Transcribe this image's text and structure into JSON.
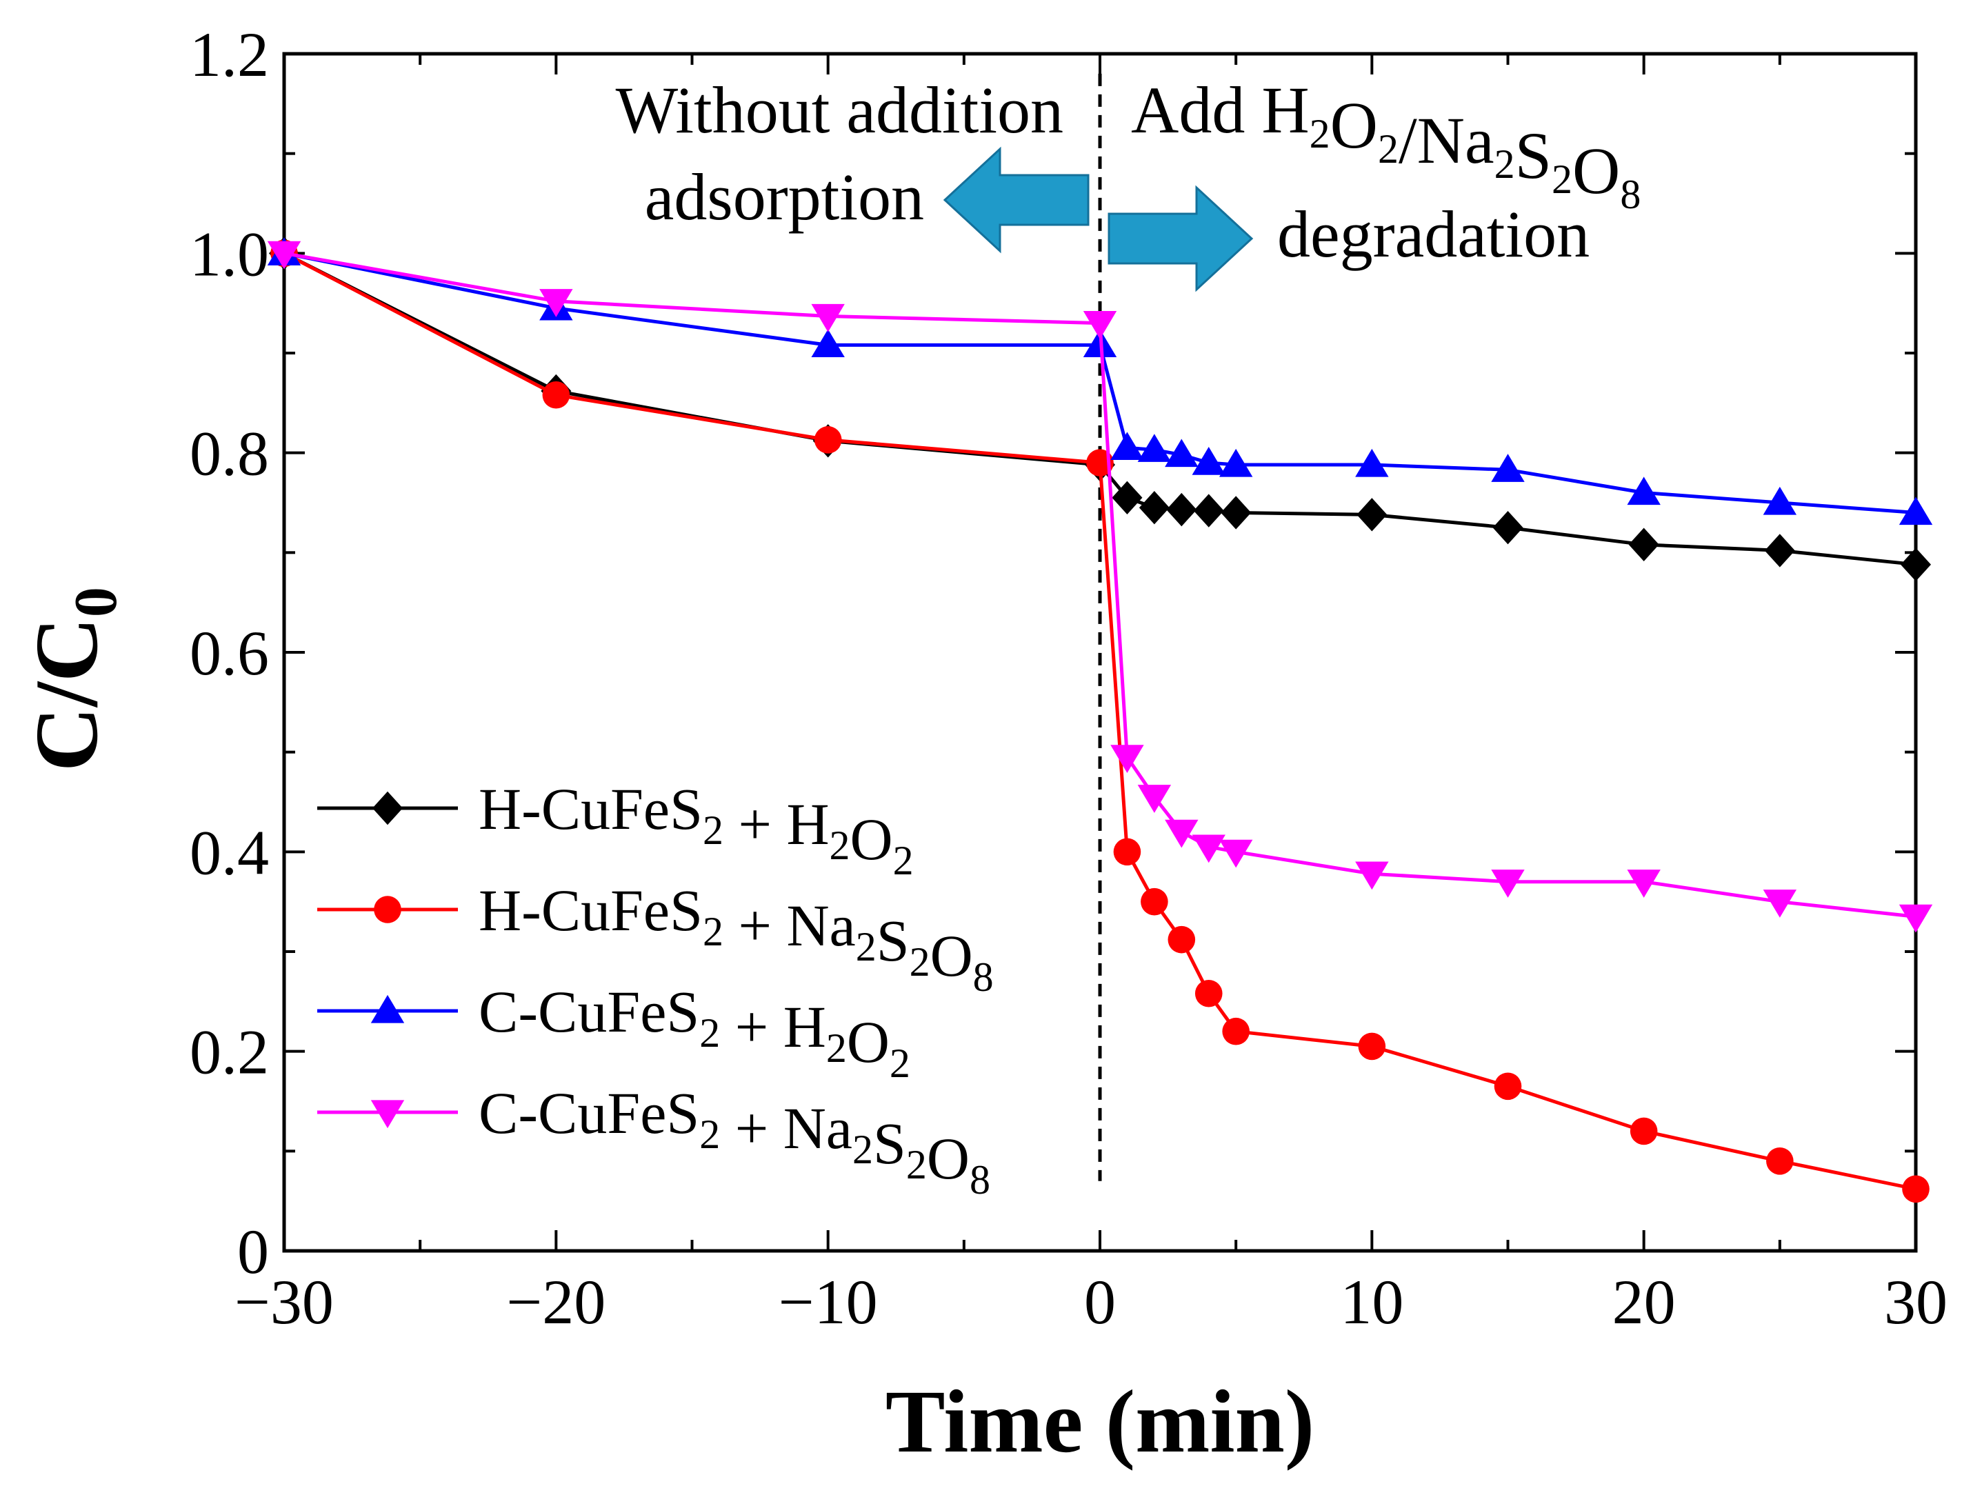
{
  "chart_data": {
    "type": "line",
    "title": "",
    "xlabel": "Time (min)",
    "ylabel": {
      "main": "C/C",
      "sub": "0"
    },
    "xlim": [
      -30,
      30
    ],
    "ylim": [
      0,
      1.2
    ],
    "x_ticks": [
      -30,
      -20,
      -10,
      0,
      10,
      20,
      30
    ],
    "x_tick_labels": [
      "−30",
      "−20",
      "−10",
      "0",
      "10",
      "20",
      "30"
    ],
    "y_ticks": [
      0,
      0.2,
      0.4,
      0.6,
      0.8,
      1.0,
      1.2
    ],
    "y_tick_labels": [
      "0",
      "0.2",
      "0.4",
      "0.6",
      "0.8",
      "1.0",
      "1.2"
    ],
    "legend_position": "lower-left",
    "divider_x": 0,
    "series": [
      {
        "name": "H-CuFeS2 + H2O2",
        "color": "#000000",
        "marker": "diamond",
        "legend": [
          {
            "t": "H-CuFeS"
          },
          {
            "t": "2",
            "sub": true
          },
          {
            "t": " + H"
          },
          {
            "t": "2",
            "sub": true
          },
          {
            "t": "O"
          },
          {
            "t": "2",
            "sub": true
          }
        ],
        "x": [
          -30,
          -20,
          -10,
          0,
          1,
          2,
          3,
          4,
          5,
          10,
          15,
          20,
          25,
          30
        ],
        "y": [
          1.0,
          0.862,
          0.812,
          0.788,
          0.755,
          0.745,
          0.743,
          0.742,
          0.74,
          0.738,
          0.725,
          0.708,
          0.702,
          0.688
        ]
      },
      {
        "name": "H-CuFeS2 + Na2S2O8",
        "color": "#ff0000",
        "marker": "circle",
        "legend": [
          {
            "t": "H-CuFeS"
          },
          {
            "t": "2",
            "sub": true
          },
          {
            "t": " + Na"
          },
          {
            "t": "2",
            "sub": true
          },
          {
            "t": "S"
          },
          {
            "t": "2",
            "sub": true
          },
          {
            "t": "O"
          },
          {
            "t": "8",
            "sub": true
          }
        ],
        "x": [
          -30,
          -20,
          -10,
          0,
          1,
          2,
          3,
          4,
          5,
          10,
          15,
          20,
          25,
          30
        ],
        "y": [
          1.0,
          0.858,
          0.813,
          0.79,
          0.4,
          0.35,
          0.312,
          0.258,
          0.22,
          0.205,
          0.165,
          0.12,
          0.09,
          0.062
        ]
      },
      {
        "name": "C-CuFeS2 + H2O2",
        "color": "#0000ff",
        "marker": "triangle-up",
        "legend": [
          {
            "t": "C-CuFeS"
          },
          {
            "t": "2",
            "sub": true
          },
          {
            "t": " + H"
          },
          {
            "t": "2",
            "sub": true
          },
          {
            "t": "O"
          },
          {
            "t": "2",
            "sub": true
          }
        ],
        "x": [
          -30,
          -20,
          -10,
          0,
          1,
          2,
          3,
          4,
          5,
          10,
          15,
          20,
          25,
          30
        ],
        "y": [
          1.0,
          0.945,
          0.908,
          0.908,
          0.805,
          0.803,
          0.798,
          0.79,
          0.788,
          0.788,
          0.783,
          0.76,
          0.75,
          0.74
        ]
      },
      {
        "name": "C-CuFeS2 + Na2S2O8",
        "color": "#ff00ff",
        "marker": "triangle-down",
        "legend": [
          {
            "t": "C-CuFeS"
          },
          {
            "t": "2",
            "sub": true
          },
          {
            "t": " + Na"
          },
          {
            "t": "2",
            "sub": true
          },
          {
            "t": "S"
          },
          {
            "t": "2",
            "sub": true
          },
          {
            "t": "O"
          },
          {
            "t": "8",
            "sub": true
          }
        ],
        "x": [
          -30,
          -20,
          -10,
          0,
          1,
          2,
          3,
          4,
          5,
          10,
          15,
          20,
          25,
          30
        ],
        "y": [
          1.0,
          0.952,
          0.937,
          0.93,
          0.495,
          0.455,
          0.42,
          0.405,
          0.4,
          0.378,
          0.37,
          0.37,
          0.35,
          0.335
        ]
      }
    ],
    "annotations": {
      "left": {
        "line1": "Without addition",
        "line2": "adsorption",
        "arrow_direction": "left",
        "arrow_color": "#1f9ac9"
      },
      "right": {
        "line1": [
          {
            "t": "Add H"
          },
          {
            "t": "2",
            "sub": true
          },
          {
            "t": "O"
          },
          {
            "t": "2",
            "sub": true
          },
          {
            "t": "/Na"
          },
          {
            "t": "2",
            "sub": true
          },
          {
            "t": "S"
          },
          {
            "t": "2",
            "sub": true
          },
          {
            "t": "O"
          },
          {
            "t": "8",
            "sub": true
          }
        ],
        "line2": "degradation",
        "arrow_direction": "right",
        "arrow_color": "#1f9ac9"
      }
    }
  }
}
